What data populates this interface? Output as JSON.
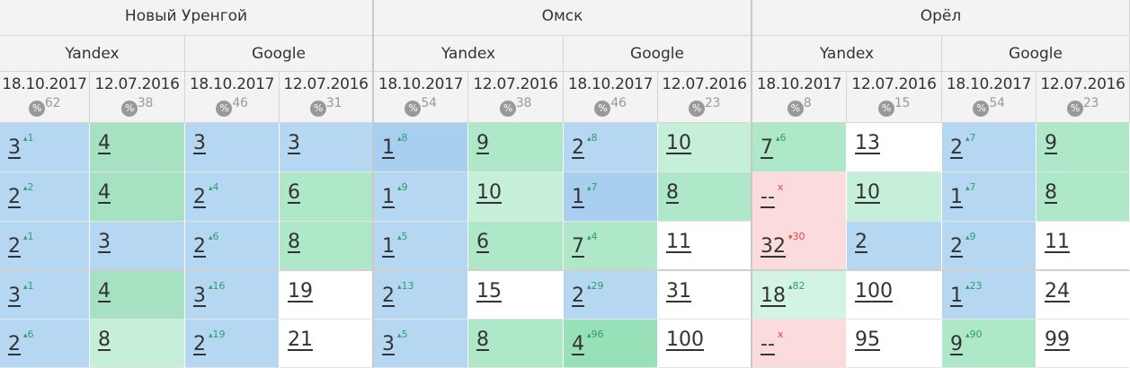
{
  "percent_icon": "%",
  "cities": [
    {
      "name": "Новый Уренгой",
      "engines": [
        {
          "name": "Yandex",
          "columns": [
            {
              "date": "18.10.2017",
              "count": "62"
            },
            {
              "date": "12.07.2016",
              "count": "38"
            }
          ]
        },
        {
          "name": "Google",
          "columns": [
            {
              "date": "18.10.2017",
              "count": "46"
            },
            {
              "date": "12.07.2016",
              "count": "31"
            }
          ]
        }
      ]
    },
    {
      "name": "Омск",
      "engines": [
        {
          "name": "Yandex",
          "columns": [
            {
              "date": "18.10.2017",
              "count": "54"
            },
            {
              "date": "12.07.2016",
              "count": "38"
            }
          ]
        },
        {
          "name": "Google",
          "columns": [
            {
              "date": "18.10.2017",
              "count": "46"
            },
            {
              "date": "12.07.2016",
              "count": "23"
            }
          ]
        }
      ]
    },
    {
      "name": "Орёл",
      "engines": [
        {
          "name": "Yandex",
          "columns": [
            {
              "date": "18.10.2017",
              "count": "8"
            },
            {
              "date": "12.07.2016",
              "count": "15"
            }
          ]
        },
        {
          "name": "Google",
          "columns": [
            {
              "date": "18.10.2017",
              "count": "54"
            },
            {
              "date": "12.07.2016",
              "count": "23"
            }
          ]
        }
      ]
    }
  ],
  "rows": [
    [
      {
        "value": "3",
        "delta": "1",
        "trend": "up",
        "bg": "#b6d7f1"
      },
      {
        "value": "4",
        "bg": "#a6e2c2"
      },
      {
        "value": "3",
        "bg": "#b6d7f1"
      },
      {
        "value": "3",
        "bg": "#b6d7f1"
      },
      {
        "value": "1",
        "delta": "8",
        "trend": "up",
        "bg": "#a9cff0"
      },
      {
        "value": "9",
        "bg": "#aee8c8"
      },
      {
        "value": "2",
        "delta": "8",
        "trend": "up",
        "bg": "#b6d7f1"
      },
      {
        "value": "10",
        "bg": "#c6efd9"
      },
      {
        "value": "7",
        "delta": "6",
        "trend": "up",
        "bg": "#aee8c8"
      },
      {
        "value": "13",
        "bg": "#ffffff"
      },
      {
        "value": "2",
        "delta": "7",
        "trend": "up",
        "bg": "#b6d7f1"
      },
      {
        "value": "9",
        "bg": "#aee8c8"
      }
    ],
    [
      {
        "value": "2",
        "delta": "2",
        "trend": "up",
        "bg": "#b6d7f1"
      },
      {
        "value": "4",
        "bg": "#a6e2c2"
      },
      {
        "value": "2",
        "delta": "4",
        "trend": "up",
        "bg": "#b6d7f1"
      },
      {
        "value": "6",
        "bg": "#aee8c8"
      },
      {
        "value": "1",
        "delta": "9",
        "trend": "up",
        "bg": "#b6d7f1"
      },
      {
        "value": "10",
        "bg": "#c6efd9"
      },
      {
        "value": "1",
        "delta": "7",
        "trend": "up",
        "bg": "#a9cff0"
      },
      {
        "value": "8",
        "bg": "#aee8c8"
      },
      {
        "value": "--",
        "delta": "x",
        "trend": "none",
        "bg": "#fbdbdc"
      },
      {
        "value": "10",
        "bg": "#c6efd9"
      },
      {
        "value": "1",
        "delta": "7",
        "trend": "up",
        "bg": "#b6d7f1"
      },
      {
        "value": "8",
        "bg": "#aee8c8"
      }
    ],
    [
      {
        "value": "2",
        "delta": "1",
        "trend": "up",
        "bg": "#b6d7f1"
      },
      {
        "value": "3",
        "bg": "#b6d7f1"
      },
      {
        "value": "2",
        "delta": "6",
        "trend": "up",
        "bg": "#b6d7f1"
      },
      {
        "value": "8",
        "bg": "#aee8c8"
      },
      {
        "value": "1",
        "delta": "5",
        "trend": "up",
        "bg": "#b6d7f1"
      },
      {
        "value": "6",
        "bg": "#aee8c8"
      },
      {
        "value": "7",
        "delta": "4",
        "trend": "up",
        "bg": "#aee8c8"
      },
      {
        "value": "11",
        "bg": "#ffffff"
      },
      {
        "value": "32",
        "delta": "30",
        "trend": "down",
        "bg": "#fbdbdc"
      },
      {
        "value": "2",
        "bg": "#b6d7f1"
      },
      {
        "value": "2",
        "delta": "9",
        "trend": "up",
        "bg": "#b6d7f1"
      },
      {
        "value": "11",
        "bg": "#ffffff"
      }
    ],
    [
      {
        "value": "3",
        "delta": "1",
        "trend": "up",
        "bg": "#b6d7f1"
      },
      {
        "value": "4",
        "bg": "#a6e2c2"
      },
      {
        "value": "3",
        "delta": "16",
        "trend": "up",
        "bg": "#b6d7f1"
      },
      {
        "value": "19",
        "bg": "#ffffff"
      },
      {
        "value": "2",
        "delta": "13",
        "trend": "up",
        "bg": "#b6d7f1"
      },
      {
        "value": "15",
        "bg": "#ffffff"
      },
      {
        "value": "2",
        "delta": "29",
        "trend": "up",
        "bg": "#b6d7f1"
      },
      {
        "value": "31",
        "bg": "#ffffff"
      },
      {
        "value": "18",
        "delta": "82",
        "trend": "up",
        "bg": "#d3f4e2"
      },
      {
        "value": "100",
        "bg": "#ffffff"
      },
      {
        "value": "1",
        "delta": "23",
        "trend": "up",
        "bg": "#b6d7f1"
      },
      {
        "value": "24",
        "bg": "#ffffff"
      }
    ],
    [
      {
        "value": "2",
        "delta": "6",
        "trend": "up",
        "bg": "#b6d7f1"
      },
      {
        "value": "8",
        "bg": "#c6efd9"
      },
      {
        "value": "2",
        "delta": "19",
        "trend": "up",
        "bg": "#b6d7f1"
      },
      {
        "value": "21",
        "bg": "#ffffff"
      },
      {
        "value": "3",
        "delta": "5",
        "trend": "up",
        "bg": "#b6d7f1"
      },
      {
        "value": "8",
        "bg": "#aee8c8"
      },
      {
        "value": "4",
        "delta": "96",
        "trend": "up",
        "bg": "#97e0b8"
      },
      {
        "value": "100",
        "bg": "#ffffff"
      },
      {
        "value": "--",
        "delta": "x",
        "trend": "none",
        "bg": "#fbdbdc"
      },
      {
        "value": "95",
        "bg": "#ffffff"
      },
      {
        "value": "9",
        "delta": "90",
        "trend": "up",
        "bg": "#aee8c8"
      },
      {
        "value": "99",
        "bg": "#ffffff"
      }
    ]
  ]
}
